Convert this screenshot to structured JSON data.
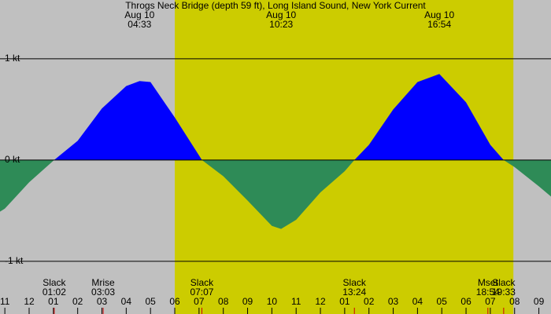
{
  "chart_data": {
    "type": "area",
    "title": "Throgs Neck Bridge (depth 59 ft), Long Island Sound, New York Current",
    "x": [
      -1.2,
      -1,
      0,
      1.03,
      2,
      3,
      4,
      4.55,
      5,
      6,
      7.12,
      8,
      9,
      10,
      10.38,
      11,
      12,
      13,
      13.4,
      14,
      15,
      16,
      16.9,
      18,
      19,
      19.55,
      20,
      21,
      21.5
    ],
    "series": [
      {
        "name": "Current",
        "values": [
          -0.51,
          -0.48,
          -0.22,
          0,
          0.19,
          0.51,
          0.73,
          0.78,
          0.77,
          0.42,
          0,
          -0.16,
          -0.4,
          -0.65,
          -0.68,
          -0.59,
          -0.32,
          -0.11,
          0,
          0.15,
          0.5,
          0.77,
          0.85,
          0.57,
          0.15,
          0,
          -0.07,
          -0.26,
          -0.36
        ]
      }
    ],
    "positive_color": "#0000ff",
    "negative_color": "#2e8b57",
    "daylight": [
      6,
      19.95
    ],
    "daylight_color": "#cccc00",
    "xlim": [
      -1.2,
      21.5
    ],
    "ylim": [
      -1.52,
      1.58
    ],
    "yticks": [
      {
        "value": 1,
        "label": "1 kt"
      },
      {
        "value": 0,
        "label": "0 kt"
      },
      {
        "value": -1,
        "label": "-1 kt"
      }
    ],
    "xticks": [
      {
        "value": -1,
        "label": "11"
      },
      {
        "value": 0,
        "label": "12"
      },
      {
        "value": 1,
        "label": "01"
      },
      {
        "value": 2,
        "label": "02"
      },
      {
        "value": 3,
        "label": "03"
      },
      {
        "value": 4,
        "label": "04"
      },
      {
        "value": 5,
        "label": "05"
      },
      {
        "value": 6,
        "label": "06"
      },
      {
        "value": 7,
        "label": "07"
      },
      {
        "value": 8,
        "label": "08"
      },
      {
        "value": 9,
        "label": "09"
      },
      {
        "value": 10,
        "label": "10"
      },
      {
        "value": 11,
        "label": "11"
      },
      {
        "value": 12,
        "label": "12"
      },
      {
        "value": 13,
        "label": "01"
      },
      {
        "value": 14,
        "label": "02"
      },
      {
        "value": 15,
        "label": "03"
      },
      {
        "value": 16,
        "label": "04"
      },
      {
        "value": 17,
        "label": "05"
      },
      {
        "value": 18,
        "label": "06"
      },
      {
        "value": 19,
        "label": "07"
      },
      {
        "value": 20,
        "label": "08"
      },
      {
        "value": 21,
        "label": "09"
      }
    ],
    "top_annotations": [
      {
        "date": "Aug 10",
        "time": "04:33"
      },
      {
        "date": "Aug 10",
        "time": "10:23"
      },
      {
        "date": "Aug 10",
        "time": "16:54"
      }
    ],
    "bottom_annotations": [
      {
        "label": "Slack",
        "time": "01:02"
      },
      {
        "label": "Mrise",
        "time": "03:03"
      },
      {
        "label": "Slack",
        "time": "07:07"
      },
      {
        "label": "Slack",
        "time": "13:24"
      },
      {
        "label": "Mset",
        "time": "18:54"
      },
      {
        "label": "Slack",
        "time": "19:33"
      }
    ]
  }
}
